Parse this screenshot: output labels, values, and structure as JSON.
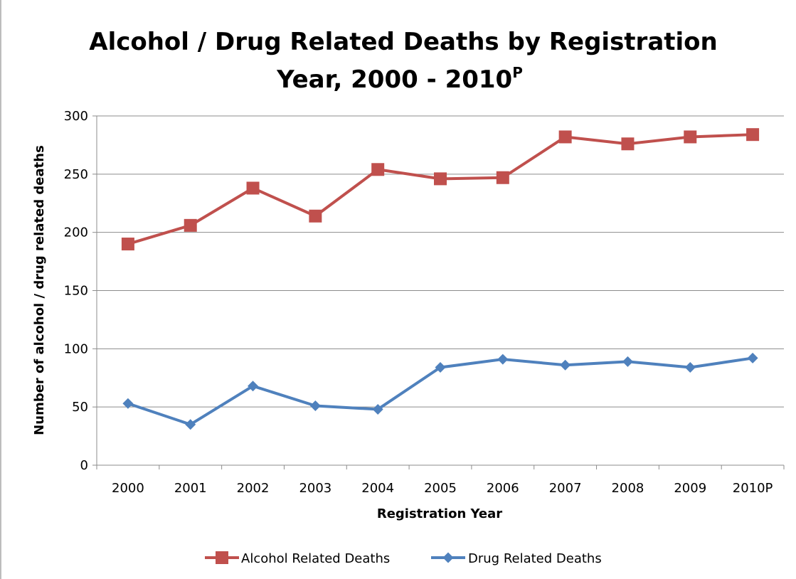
{
  "chart_data": {
    "type": "line",
    "title_line1": "Alcohol / Drug Related Deaths by Registration",
    "title_line2": "Year, 2000 - 2010",
    "title_superscript": "P",
    "xlabel": "Registration Year",
    "ylabel": "Number of alcohol / drug related deaths",
    "categories": [
      "2000",
      "2001",
      "2002",
      "2003",
      "2004",
      "2005",
      "2006",
      "2007",
      "2008",
      "2009",
      "2010P"
    ],
    "ylim": [
      0,
      300
    ],
    "yticks": [
      0,
      50,
      100,
      150,
      200,
      250,
      300
    ],
    "grid": true,
    "legend_position": "bottom",
    "series": [
      {
        "name": "Alcohol Related Deaths",
        "color": "#c0504d",
        "marker": "square",
        "values": [
          190,
          206,
          238,
          214,
          254,
          246,
          247,
          282,
          276,
          282,
          284
        ]
      },
      {
        "name": "Drug Related Deaths",
        "color": "#4f81bd",
        "marker": "diamond",
        "values": [
          53,
          35,
          68,
          51,
          48,
          84,
          91,
          86,
          89,
          84,
          92
        ]
      }
    ]
  }
}
